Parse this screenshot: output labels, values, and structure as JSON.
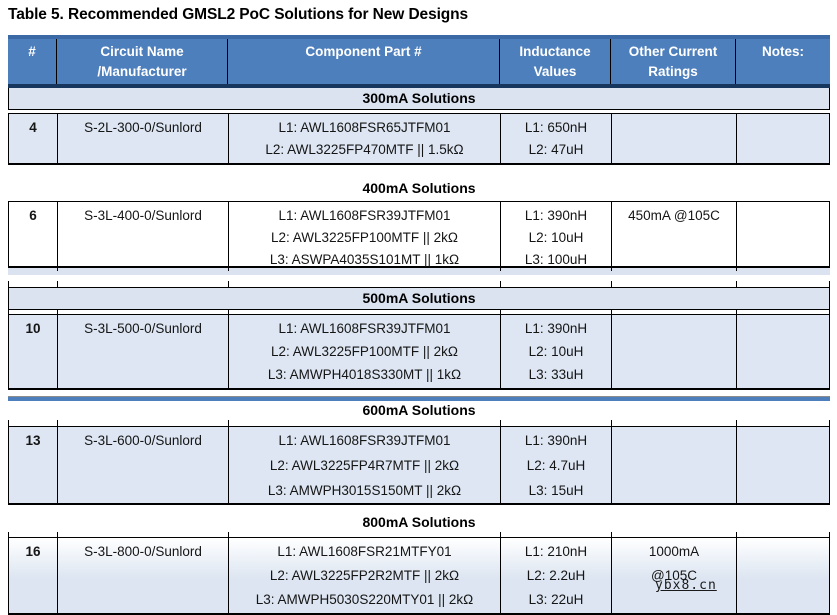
{
  "title": "Table 5. Recommended GMSL2 PoC Solutions for New Designs",
  "watermark": "ybx8.cn",
  "colors": {
    "header_fill": "#4e7fbd",
    "header_top_strip": "#3b69a5",
    "header_underline": "#17365d",
    "section_band_fill": "#dbe3f0",
    "row_shade": "#dde6f2",
    "separator_bar": "#4e7fbd"
  },
  "table": {
    "columns": [
      "#",
      "Circuit Name\n/Manufacturer",
      "Component Part #",
      "Inductance\nValues",
      "Other Current\nRatings",
      "Notes:"
    ]
  },
  "sections": [
    {
      "heading": "300mA Solutions",
      "row": {
        "num": "4",
        "circuit": "S-2L-300-0/Sunlord",
        "parts": "L1: AWL1608FSR65JTFM01\nL2: AWL3225FP470MTF || 1.5kΩ",
        "inductance": "L1: 650nH\nL2: 47uH",
        "other": "",
        "notes": ""
      }
    },
    {
      "heading": "400mA Solutions",
      "row": {
        "num": "6",
        "circuit": "S-3L-400-0/Sunlord",
        "parts": "L1: AWL1608FSR39JTFM01\nL2: AWL3225FP100MTF || 2kΩ\nL3: ASWPA4035S101MT || 1kΩ",
        "inductance": "L1: 390nH\nL2: 10uH\nL3: 100uH",
        "other": "450mA @105C",
        "notes": ""
      }
    },
    {
      "heading": "500mA Solutions",
      "row": {
        "num": "10",
        "circuit": "S-3L-500-0/Sunlord",
        "parts": "L1: AWL1608FSR39JTFM01\nL2: AWL3225FP100MTF || 2kΩ\nL3: AMWPH4018S330MT || 1kΩ",
        "inductance": "L1: 390nH\nL2: 10uH\nL3: 33uH",
        "other": "",
        "notes": ""
      }
    },
    {
      "heading": "600mA Solutions",
      "row": {
        "num": "13",
        "circuit": "S-3L-600-0/Sunlord",
        "parts": "L1: AWL1608FSR39JTFM01\nL2: AWL3225FP4R7MTF || 2kΩ\nL3: AMWPH3015S150MT || 2kΩ",
        "inductance": "L1: 390nH\nL2: 4.7uH\nL3: 15uH",
        "other": "",
        "notes": ""
      }
    },
    {
      "heading": "800mA Solutions",
      "row": {
        "num": "16",
        "circuit": "S-3L-800-0/Sunlord",
        "parts": "L1: AWL1608FSR21MTFY01\nL2: AWL3225FP2R2MTF || 2kΩ\nL3: AMWPH5030S220MTY01 || 2kΩ",
        "inductance": "L1: 210nH\nL2: 2.2uH\nL3: 22uH",
        "other": "1000mA\n@105C",
        "notes": ""
      }
    }
  ]
}
